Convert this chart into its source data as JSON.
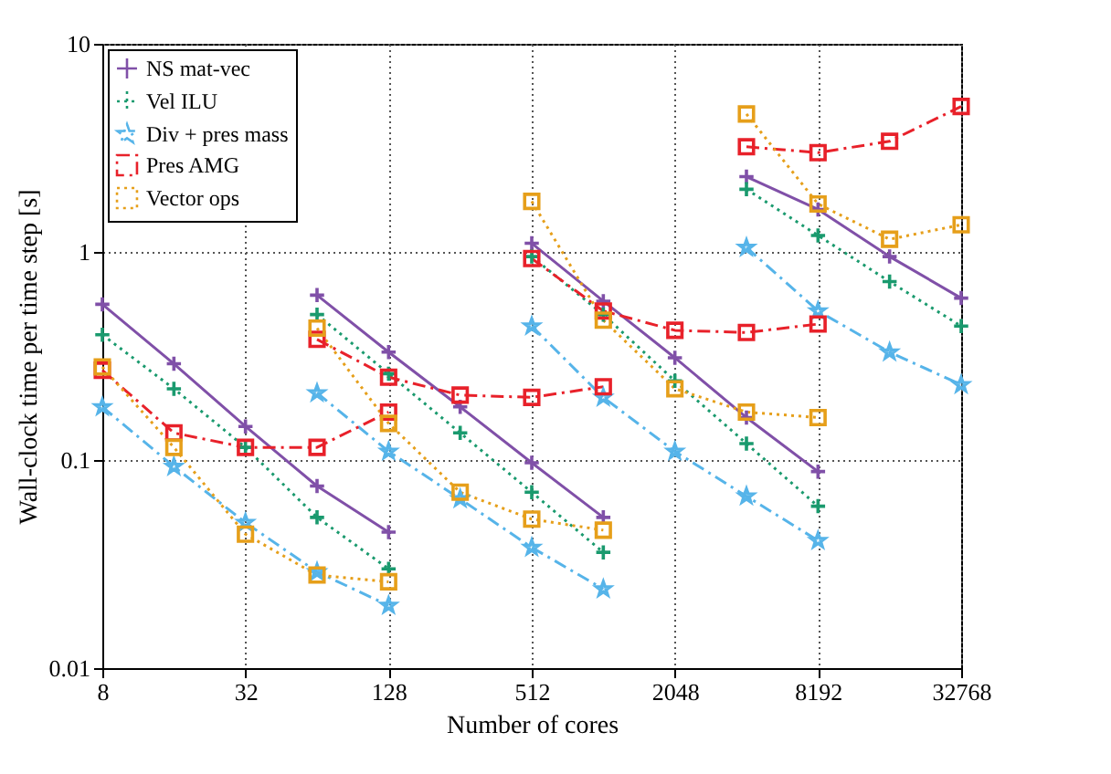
{
  "chart_data": {
    "type": "line",
    "xlabel": "Number of cores",
    "ylabel": "Wall-clock time per time step [s]",
    "log": "xy",
    "xlim": [
      8,
      32768
    ],
    "xticks": [
      8,
      32,
      128,
      512,
      2048,
      8192,
      32768
    ],
    "ylim": [
      0.01,
      10
    ],
    "yticks": [
      0.01,
      0.1,
      1,
      10
    ],
    "grid": true,
    "legend": "top left",
    "series": [
      {
        "name": "NS mat-vec",
        "color": "#8050a8",
        "marker": "cross",
        "line_style": "solid",
        "x": [
          8,
          16,
          32,
          64,
          128,
          null,
          64,
          128,
          256,
          512,
          1024,
          null,
          512,
          1024,
          2048,
          4096,
          8192,
          null,
          4096,
          8192,
          16384,
          32768
        ],
        "values": [
          0.56,
          0.29,
          0.145,
          0.075,
          0.045,
          null,
          0.62,
          0.33,
          0.18,
          0.097,
          0.053,
          null,
          1.1,
          0.58,
          0.31,
          0.16,
          0.088,
          null,
          2.3,
          1.6,
          0.95,
          0.6
        ]
      },
      {
        "name": "Vel ILU",
        "color": "#1a9a6e",
        "marker": "cross",
        "line_style": "dotted",
        "x": [
          8,
          16,
          32,
          64,
          128,
          null,
          64,
          128,
          256,
          512,
          1024,
          null,
          512,
          1024,
          2048,
          4096,
          8192,
          null,
          4096,
          8192,
          16384,
          32768
        ],
        "values": [
          0.4,
          0.22,
          0.115,
          0.053,
          0.03,
          null,
          0.5,
          0.26,
          0.135,
          0.07,
          0.036,
          null,
          0.95,
          0.5,
          0.24,
          0.12,
          0.06,
          null,
          2.0,
          1.2,
          0.72,
          0.44
        ]
      },
      {
        "name": "Div + pres mass",
        "color": "#56b4e9",
        "marker": "star",
        "line_style": "dashed",
        "x": [
          8,
          16,
          32,
          64,
          128,
          null,
          64,
          128,
          256,
          512,
          1024,
          null,
          512,
          1024,
          2048,
          4096,
          8192,
          null,
          4096,
          8192,
          16384,
          32768
        ],
        "values": [
          0.18,
          0.093,
          0.05,
          0.029,
          0.02,
          null,
          0.21,
          0.11,
          0.065,
          0.038,
          0.024,
          null,
          0.44,
          0.2,
          0.11,
          0.067,
          0.041,
          null,
          1.05,
          0.52,
          0.33,
          0.23
        ]
      },
      {
        "name": "Pres AMG",
        "color": "#e8212a",
        "marker": "square",
        "line_style": "dashed",
        "x": [
          8,
          16,
          32,
          64,
          128,
          null,
          64,
          128,
          256,
          512,
          1024,
          null,
          512,
          1024,
          2048,
          4096,
          8192,
          null,
          4096,
          8192,
          16384,
          32768
        ],
        "values": [
          0.27,
          0.135,
          0.115,
          0.115,
          0.17,
          null,
          0.38,
          0.25,
          0.205,
          0.2,
          0.225,
          null,
          0.93,
          0.52,
          0.42,
          0.41,
          0.45,
          null,
          3.2,
          3.0,
          3.4,
          5.0
        ]
      },
      {
        "name": "Vector ops",
        "color": "#e69f1a",
        "marker": "square",
        "line_style": "dotted",
        "x": [
          8,
          16,
          32,
          64,
          128,
          null,
          64,
          128,
          256,
          512,
          1024,
          null,
          512,
          1024,
          2048,
          4096,
          8192,
          null,
          4096,
          8192,
          16384,
          32768
        ],
        "values": [
          0.28,
          0.115,
          0.044,
          0.028,
          0.026,
          null,
          0.43,
          0.15,
          0.07,
          0.052,
          0.046,
          null,
          1.75,
          0.47,
          0.22,
          0.17,
          0.16,
          null,
          4.6,
          1.7,
          1.15,
          1.35
        ]
      }
    ]
  }
}
